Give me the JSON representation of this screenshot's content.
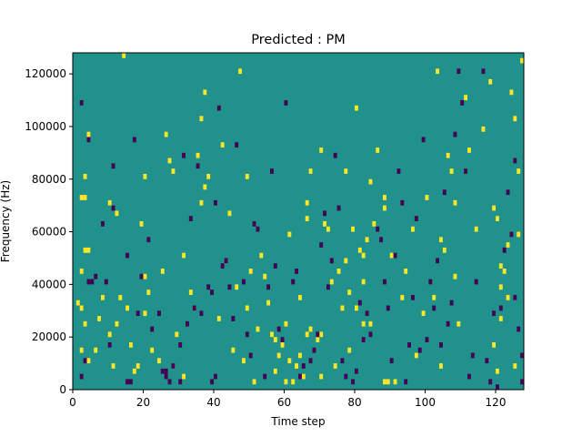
{
  "chart_data": {
    "type": "heatmap",
    "title": "Predicted : PM",
    "xlabel": "Time step",
    "ylabel": "Frequency (Hz)",
    "xlim": [
      0,
      128
    ],
    "ylim": [
      0,
      128000
    ],
    "xticks": [
      0,
      20,
      40,
      60,
      80,
      100,
      120
    ],
    "yticks": [
      0,
      20000,
      40000,
      60000,
      80000,
      100000,
      120000
    ],
    "xtick_labels": [
      "0",
      "20",
      "40",
      "60",
      "80",
      "100",
      "120"
    ],
    "ytick_labels": [
      "0",
      "20000",
      "40000",
      "60000",
      "80000",
      "100000",
      "120000"
    ],
    "colormap": "viridis",
    "value_levels": [
      -1,
      0,
      1
    ],
    "level_colors": {
      "-1": "#440154",
      "0": "#21918c",
      "1": "#fde725"
    },
    "background_value": 0,
    "grid": false,
    "legend": "none",
    "cell_height_hz": 2000,
    "cells_high": [
      [
        3,
        73000
      ],
      [
        2,
        73000
      ],
      [
        4,
        53000
      ],
      [
        3,
        53000
      ],
      [
        2,
        45000
      ],
      [
        1,
        33000
      ],
      [
        2,
        31000
      ],
      [
        3,
        25000
      ],
      [
        2,
        15000
      ],
      [
        6,
        15000
      ],
      [
        4,
        11000
      ],
      [
        3,
        81000
      ],
      [
        4,
        97000
      ],
      [
        11,
        9000
      ],
      [
        12,
        25000
      ],
      [
        7,
        27000
      ],
      [
        14,
        127000
      ],
      [
        10,
        71000
      ],
      [
        12,
        67000
      ],
      [
        8,
        35000
      ],
      [
        13,
        35000
      ],
      [
        10,
        21000
      ],
      [
        15,
        31000
      ],
      [
        17,
        7000
      ],
      [
        16,
        17000
      ],
      [
        20,
        43000
      ],
      [
        21,
        37000
      ],
      [
        18,
        9000
      ],
      [
        20,
        29000
      ],
      [
        19,
        63000
      ],
      [
        20,
        81000
      ],
      [
        22,
        15000
      ],
      [
        24,
        11000
      ],
      [
        25,
        45000
      ],
      [
        26,
        97000
      ],
      [
        27,
        87000
      ],
      [
        28,
        83000
      ],
      [
        28,
        9000
      ],
      [
        29,
        21000
      ],
      [
        31,
        51000
      ],
      [
        31,
        5000
      ],
      [
        33,
        37000
      ],
      [
        34,
        31000
      ],
      [
        35,
        89000
      ],
      [
        36,
        71000
      ],
      [
        37,
        77000
      ],
      [
        38,
        81000
      ],
      [
        37,
        113000
      ],
      [
        36,
        103000
      ],
      [
        41,
        27000
      ],
      [
        42,
        93000
      ],
      [
        44,
        67000
      ],
      [
        43,
        49000
      ],
      [
        45,
        15000
      ],
      [
        46,
        39000
      ],
      [
        47,
        121000
      ],
      [
        48,
        11000
      ],
      [
        49,
        81000
      ],
      [
        49,
        31000
      ],
      [
        50,
        45000
      ],
      [
        51,
        3000
      ],
      [
        52,
        23000
      ],
      [
        53,
        51000
      ],
      [
        54,
        43000
      ],
      [
        55,
        33000
      ],
      [
        56,
        21000
      ],
      [
        57,
        19000
      ],
      [
        57,
        7000
      ],
      [
        58,
        13000
      ],
      [
        59,
        17000
      ],
      [
        60,
        25000
      ],
      [
        60,
        3000
      ],
      [
        61,
        59000
      ],
      [
        61,
        11000
      ],
      [
        62,
        3000
      ],
      [
        63,
        9000
      ],
      [
        64,
        35000
      ],
      [
        64,
        13000
      ],
      [
        65,
        5000
      ],
      [
        66,
        21000
      ],
      [
        66,
        71000
      ],
      [
        67,
        83000
      ],
      [
        66,
        65000
      ],
      [
        67,
        23000
      ],
      [
        69,
        19000
      ],
      [
        70,
        21000
      ],
      [
        70,
        5000
      ],
      [
        71,
        63000
      ],
      [
        70,
        91000
      ],
      [
        72,
        61000
      ],
      [
        73,
        41000
      ],
      [
        74,
        9000
      ],
      [
        75,
        45000
      ],
      [
        76,
        31000
      ],
      [
        77,
        49000
      ],
      [
        77,
        83000
      ],
      [
        78,
        37000
      ],
      [
        78,
        15000
      ],
      [
        79,
        61000
      ],
      [
        80,
        107000
      ],
      [
        80,
        31000
      ],
      [
        81,
        53000
      ],
      [
        82,
        51000
      ],
      [
        82,
        41000
      ],
      [
        82,
        25000
      ],
      [
        83,
        57000
      ],
      [
        84,
        79000
      ],
      [
        84,
        25000
      ],
      [
        85,
        63000
      ],
      [
        86,
        91000
      ],
      [
        88,
        73000
      ],
      [
        88,
        69000
      ],
      [
        88,
        3000
      ],
      [
        89,
        3000
      ],
      [
        91,
        3000
      ],
      [
        90,
        51000
      ],
      [
        93,
        35000
      ],
      [
        94,
        45000
      ],
      [
        96,
        61000
      ],
      [
        97,
        13000
      ],
      [
        99,
        29000
      ],
      [
        100,
        73000
      ],
      [
        102,
        35000
      ],
      [
        103,
        121000
      ],
      [
        104,
        57000
      ],
      [
        104,
        9000
      ],
      [
        105,
        53000
      ],
      [
        106,
        89000
      ],
      [
        107,
        83000
      ],
      [
        108,
        71000
      ],
      [
        108,
        43000
      ],
      [
        109,
        25000
      ],
      [
        111,
        111000
      ],
      [
        112,
        91000
      ],
      [
        114,
        61000
      ],
      [
        116,
        99000
      ],
      [
        118,
        117000
      ],
      [
        119,
        69000
      ],
      [
        119,
        17000
      ],
      [
        120,
        65000
      ],
      [
        120,
        7000
      ],
      [
        121,
        47000
      ],
      [
        121,
        27000
      ],
      [
        122,
        45000
      ],
      [
        123,
        55000
      ],
      [
        124,
        113000
      ],
      [
        125,
        103000
      ],
      [
        126,
        83000
      ],
      [
        126,
        59000
      ],
      [
        127,
        125000
      ],
      [
        123,
        35000
      ],
      [
        121,
        39000
      ],
      [
        125,
        9000
      ]
    ],
    "cells_low": [
      [
        2,
        5000
      ],
      [
        3,
        11000
      ],
      [
        5,
        41000
      ],
      [
        6,
        43000
      ],
      [
        4,
        41000
      ],
      [
        2,
        109000
      ],
      [
        4,
        95000
      ],
      [
        8,
        63000
      ],
      [
        9,
        41000
      ],
      [
        11,
        69000
      ],
      [
        10,
        17000
      ],
      [
        11,
        85000
      ],
      [
        15,
        3000
      ],
      [
        16,
        3000
      ],
      [
        15,
        51000
      ],
      [
        17,
        95000
      ],
      [
        18,
        29000
      ],
      [
        19,
        43000
      ],
      [
        21,
        57000
      ],
      [
        22,
        23000
      ],
      [
        24,
        29000
      ],
      [
        25,
        7000
      ],
      [
        26,
        5000
      ],
      [
        27,
        3000
      ],
      [
        26,
        7000
      ],
      [
        28,
        9000
      ],
      [
        30,
        17000
      ],
      [
        30,
        3000
      ],
      [
        31,
        89000
      ],
      [
        32,
        25000
      ],
      [
        33,
        65000
      ],
      [
        34,
        31000
      ],
      [
        35,
        85000
      ],
      [
        36,
        29000
      ],
      [
        38,
        39000
      ],
      [
        39,
        37000
      ],
      [
        40,
        71000
      ],
      [
        41,
        107000
      ],
      [
        39,
        3000
      ],
      [
        40,
        5000
      ],
      [
        42,
        47000
      ],
      [
        43,
        49000
      ],
      [
        44,
        39000
      ],
      [
        45,
        27000
      ],
      [
        46,
        93000
      ],
      [
        48,
        41000
      ],
      [
        49,
        21000
      ],
      [
        50,
        13000
      ],
      [
        51,
        63000
      ],
      [
        52,
        61000
      ],
      [
        54,
        5000
      ],
      [
        55,
        39000
      ],
      [
        56,
        83000
      ],
      [
        57,
        47000
      ],
      [
        58,
        23000
      ],
      [
        59,
        19000
      ],
      [
        60,
        109000
      ],
      [
        62,
        41000
      ],
      [
        63,
        45000
      ],
      [
        64,
        5000
      ],
      [
        65,
        9000
      ],
      [
        67,
        11000
      ],
      [
        68,
        15000
      ],
      [
        69,
        21000
      ],
      [
        70,
        55000
      ],
      [
        71,
        67000
      ],
      [
        72,
        39000
      ],
      [
        73,
        49000
      ],
      [
        74,
        89000
      ],
      [
        75,
        69000
      ],
      [
        76,
        11000
      ],
      [
        77,
        5000
      ],
      [
        79,
        3000
      ],
      [
        80,
        7000
      ],
      [
        81,
        33000
      ],
      [
        82,
        19000
      ],
      [
        83,
        29000
      ],
      [
        84,
        21000
      ],
      [
        86,
        61000
      ],
      [
        87,
        57000
      ],
      [
        88,
        41000
      ],
      [
        89,
        31000
      ],
      [
        90,
        11000
      ],
      [
        91,
        51000
      ],
      [
        92,
        83000
      ],
      [
        93,
        71000
      ],
      [
        94,
        3000
      ],
      [
        95,
        17000
      ],
      [
        96,
        35000
      ],
      [
        97,
        65000
      ],
      [
        98,
        15000
      ],
      [
        99,
        95000
      ],
      [
        100,
        19000
      ],
      [
        101,
        41000
      ],
      [
        102,
        31000
      ],
      [
        103,
        49000
      ],
      [
        104,
        17000
      ],
      [
        105,
        75000
      ],
      [
        106,
        25000
      ],
      [
        107,
        33000
      ],
      [
        108,
        97000
      ],
      [
        109,
        121000
      ],
      [
        110,
        109000
      ],
      [
        111,
        83000
      ],
      [
        112,
        5000
      ],
      [
        113,
        13000
      ],
      [
        114,
        41000
      ],
      [
        116,
        121000
      ],
      [
        117,
        11000
      ],
      [
        118,
        3000
      ],
      [
        119,
        29000
      ],
      [
        120,
        1000
      ],
      [
        121,
        31000
      ],
      [
        122,
        53000
      ],
      [
        123,
        75000
      ],
      [
        124,
        59000
      ],
      [
        125,
        87000
      ],
      [
        126,
        23000
      ],
      [
        127,
        3000
      ],
      [
        127,
        13000
      ],
      [
        125,
        35000
      ]
    ]
  }
}
